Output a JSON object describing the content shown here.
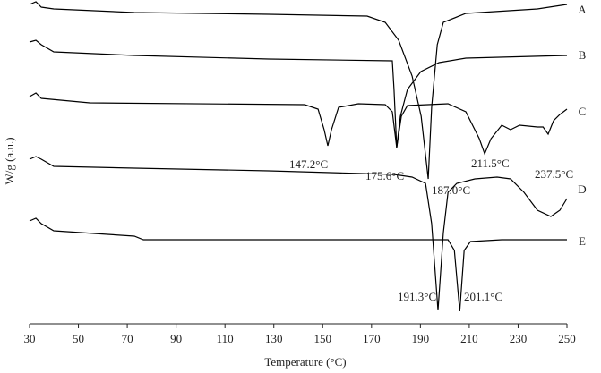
{
  "chart_data": {
    "type": "line",
    "x_label": "Temperature (°C)",
    "y_label": "W/g (a.u.)",
    "xlim": [
      30,
      250
    ],
    "xticks": [
      30,
      50,
      70,
      90,
      110,
      130,
      150,
      170,
      190,
      210,
      230,
      250
    ],
    "ylim": [
      0,
      360
    ],
    "series": [
      {
        "name": "A",
        "color": "#000000",
        "x": [
          30,
          32.6,
          34.8,
          39.9,
          72.9,
          127.9,
          168.2,
          175.6,
          181.1,
          186.6,
          190.3,
          193.2,
          194.6,
          196.9,
          199.4,
          208.6,
          237.9,
          250
        ],
        "values": [
          357,
          360,
          354,
          352,
          348,
          346,
          344,
          337,
          317,
          277,
          232,
          162,
          242,
          312,
          337,
          347,
          352,
          357
        ]
      },
      {
        "name": "B",
        "color": "#000000",
        "x": [
          30,
          32.6,
          34.8,
          39.9,
          72.9,
          127.9,
          178.5,
          179.2,
          180.3,
          181.8,
          184.7,
          190.2,
          197.6,
          208.6,
          250
        ],
        "values": [
          315,
          317,
          312,
          304,
          300,
          296,
          294,
          262,
          197,
          232,
          262,
          282,
          292,
          297,
          300
        ]
      },
      {
        "name": "C",
        "color": "#000000",
        "x": [
          30,
          32.6,
          34.8,
          54.6,
          142.6,
          148.1,
          150.6,
          152.1,
          153.6,
          156.5,
          164.6,
          175.6,
          178.5,
          180.3,
          182.2,
          184.7,
          201.3,
          208.6,
          214.1,
          216.3,
          218.9,
          223.3,
          226.9,
          230.6,
          237.9,
          240.2,
          242.3,
          244.5,
          247.1,
          250
        ],
        "values": [
          254,
          258,
          252,
          247,
          245,
          240,
          217,
          199,
          217,
          242,
          246,
          245,
          237,
          197,
          232,
          244,
          246,
          237,
          207,
          190,
          207,
          222,
          217,
          222,
          220,
          220,
          212,
          227,
          234,
          240
        ]
      },
      {
        "name": "D",
        "color": "#000000",
        "x": [
          30,
          32.6,
          34.8,
          39.9,
          72.9,
          127.9,
          179.2,
          186.6,
          192.1,
          194.6,
          197.2,
          199.4,
          201.3,
          204.9,
          212.3,
          221.4,
          226.9,
          232.4,
          237.9,
          243.4,
          247.1,
          250
        ],
        "values": [
          184,
          187,
          184,
          176,
          174,
          171,
          167,
          164,
          157,
          112,
          15,
          102,
          147,
          157,
          162,
          164,
          162,
          147,
          127,
          120,
          127,
          140
        ]
      },
      {
        "name": "E",
        "color": "#000000",
        "x": [
          30,
          32.6,
          34.8,
          39.9,
          61.9,
          72.9,
          76.6,
          127.9,
          201.3,
          203.9,
          206.1,
          207.9,
          210.5,
          223.3,
          250
        ],
        "values": [
          115,
          118,
          112,
          104,
          100,
          98,
          94,
          94,
          94,
          82,
          14,
          82,
          92,
          94,
          94
        ]
      }
    ],
    "annotations": [
      "147.2°C",
      "175.6°C",
      "187.0°C",
      "211.5°C",
      "237.5°C",
      "191.3°C",
      "201.1°C"
    ]
  }
}
